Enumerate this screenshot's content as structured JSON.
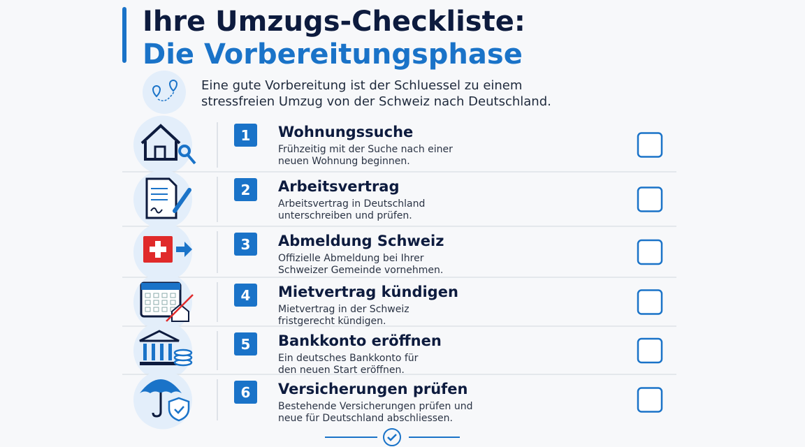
{
  "header": {
    "title_line1": "Ihre Umzugs-Checkliste:",
    "title_line2": "Die Vorbereitungsphase",
    "intro": [
      "Eine gute Vorbereitung ist der Schluessel zu einem",
      "stressfreien Umzug von der Schweiz nach Deutschland."
    ]
  },
  "items": [
    {
      "number": 1,
      "title": "Wohnungssuche",
      "description": [
        "Frühzeitig mit der Suche nach einer",
        "neuen Wohnung beginnen."
      ]
    },
    {
      "number": 2,
      "title": "Arbeitsvertrag",
      "description": [
        "Arbeitsvertrag in Deutschland",
        "unterschreiben und prüfen."
      ]
    },
    {
      "number": 3,
      "title": "Abmeldung Schweiz",
      "description": [
        "Offizielle Abmeldung bei Ihrer",
        "Schweizer Gemeinde vornehmen."
      ]
    },
    {
      "number": 4,
      "title": "Mietvertrag kündigen",
      "description": [
        "Mietvertrag in der Schweiz",
        "fristgerecht kündigen."
      ]
    },
    {
      "number": 5,
      "title": "Bankkonto eröffnen",
      "description": [
        "Ein deutsches Bankkonto für",
        "den neuen Start eröffnen."
      ]
    },
    {
      "number": 6,
      "title": "Versicherungen prüfen",
      "description": [
        "Bestehende Versicherungen prüfen und",
        "neue für Deutschland abschliessen."
      ]
    }
  ]
}
